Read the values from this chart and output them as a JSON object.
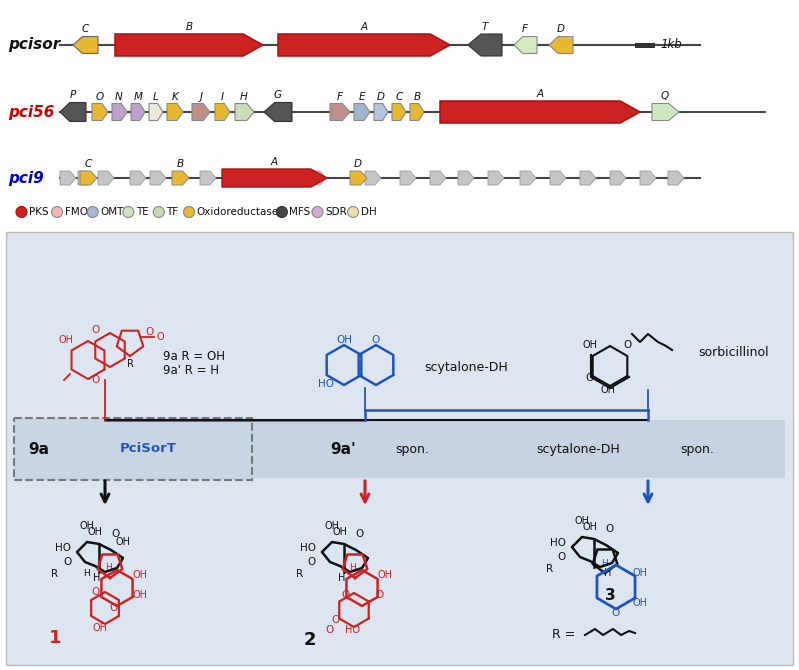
{
  "bg_color": "#ffffff",
  "panel_bg": "#dde5f0",
  "legend_items": [
    {
      "label": "PKS",
      "color": "#cc2222",
      "edge": "#aa1111"
    },
    {
      "label": "FMO",
      "color": "#f0b8b0",
      "edge": "#888888"
    },
    {
      "label": "OMT",
      "color": "#a8b8d8",
      "edge": "#888888"
    },
    {
      "label": "TE",
      "color": "#d0e0c0",
      "edge": "#888888"
    },
    {
      "label": "TF",
      "color": "#c8d8b0",
      "edge": "#888888"
    },
    {
      "label": "Oxidoreductase",
      "color": "#e8b830",
      "edge": "#888888"
    },
    {
      "label": "MFS",
      "color": "#444444",
      "edge": "#333333"
    },
    {
      "label": "SDR",
      "color": "#d8a8d8",
      "edge": "#888888"
    },
    {
      "label": "DH",
      "color": "#e8e0a8",
      "edge": "#888888"
    }
  ],
  "pcisor_label": "pcisor",
  "pci56_label": "pci56",
  "pci9_label": "pci9",
  "pcisor_color": "#111111",
  "pci56_color": "#cc0000",
  "pci9_color": "#0000cc",
  "scale_label": "1kb",
  "red": "#cc2222",
  "blue": "#2255bb",
  "black": "#111111"
}
